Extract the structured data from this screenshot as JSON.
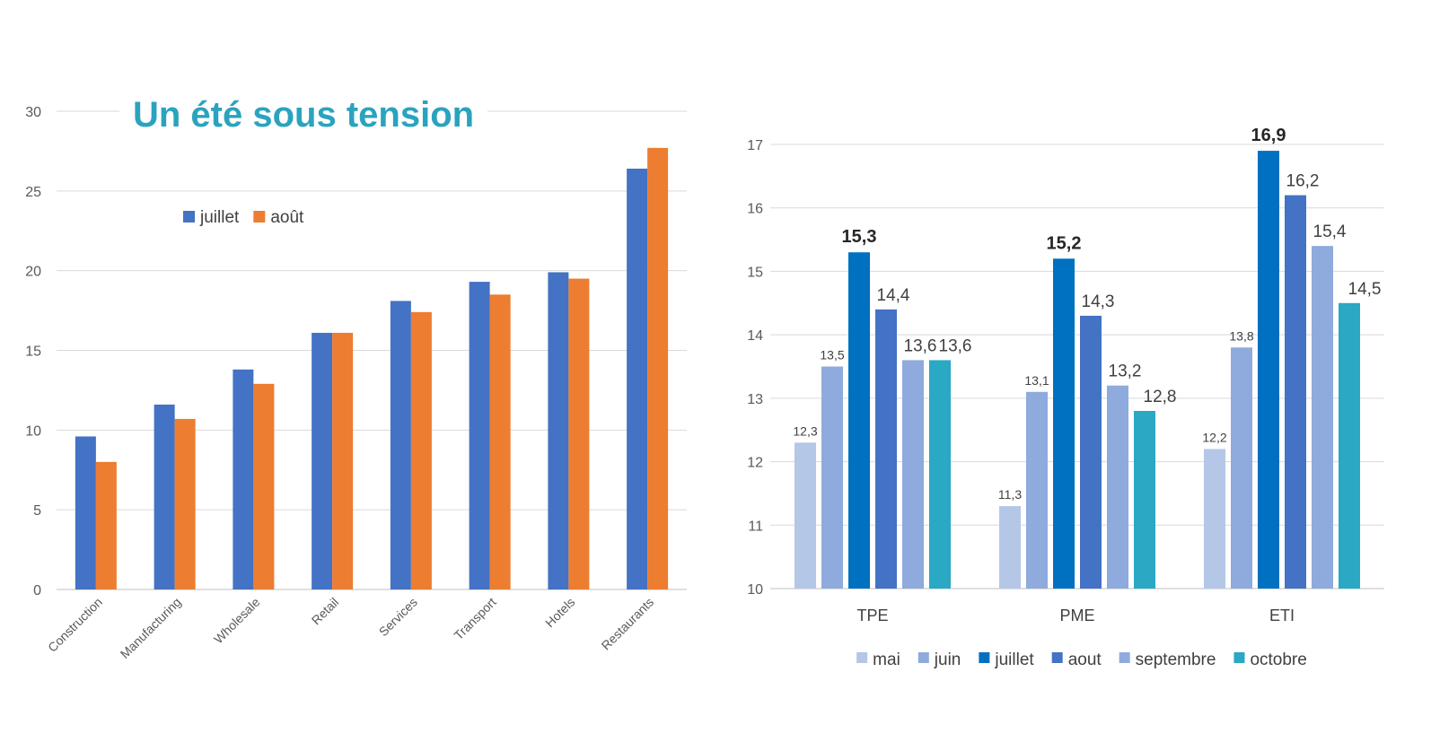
{
  "chart_data": [
    {
      "type": "bar",
      "title": "Un été sous tension",
      "categories": [
        "Construction",
        "Manufacturing",
        "Wholesale",
        "Retail",
        "Services",
        "Transport",
        "Hotels",
        "Restaurants"
      ],
      "series": [
        {
          "name": "juillet",
          "color": "#4472C4",
          "values": [
            9.6,
            11.6,
            13.8,
            16.1,
            18.1,
            19.3,
            19.9,
            26.4
          ]
        },
        {
          "name": "août",
          "color": "#ED7D31",
          "values": [
            8.0,
            10.7,
            12.9,
            16.1,
            17.4,
            18.5,
            19.5,
            27.7
          ]
        }
      ],
      "ylim": [
        0,
        30
      ],
      "yticks": [
        "0",
        "5",
        "10",
        "15",
        "20",
        "25",
        "30"
      ],
      "grid": true,
      "legend": "top-left",
      "colors": {
        "title": "#2AA3BE",
        "grid": "#D9D9D9",
        "axis": "#BFBFBF",
        "tick_text": "#595959"
      }
    },
    {
      "type": "bar",
      "categories": [
        "TPE",
        "PME",
        "ETI"
      ],
      "series": [
        {
          "name": "mai",
          "color": "#B4C7E7",
          "values": [
            12.3,
            11.3,
            12.2
          ],
          "labels": [
            "12,3",
            "11,3",
            "12,2"
          ]
        },
        {
          "name": "juin",
          "color": "#8FAADC",
          "values": [
            13.5,
            13.1,
            13.8
          ],
          "labels": [
            "13,5",
            "13,1",
            "13,8"
          ]
        },
        {
          "name": "juillet",
          "color": "#0070C0",
          "values": [
            15.3,
            15.2,
            16.9
          ],
          "labels": [
            "15,3",
            "15,2",
            "16,9"
          ]
        },
        {
          "name": "aout",
          "color": "#4472C4",
          "values": [
            14.4,
            14.3,
            16.2
          ],
          "labels": [
            "14,4",
            "14,3",
            "16,2"
          ]
        },
        {
          "name": "septembre",
          "color": "#8FAADC",
          "values": [
            13.6,
            13.2,
            15.4
          ],
          "labels": [
            "13,6",
            "13,2",
            "15,4"
          ]
        },
        {
          "name": "octobre",
          "color": "#2AA8C4",
          "values": [
            13.6,
            12.8,
            14.5
          ],
          "labels": [
            "13,6",
            "12,8",
            "14,5"
          ]
        }
      ],
      "ylim": [
        10,
        17
      ],
      "yticks": [
        "10",
        "11",
        "12",
        "13",
        "14",
        "15",
        "16",
        "17"
      ],
      "grid": true,
      "legend": "bottom"
    }
  ]
}
